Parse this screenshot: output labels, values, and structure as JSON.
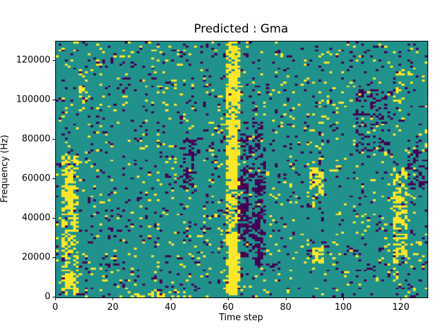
{
  "chart_data": {
    "type": "heatmap",
    "title": "Predicted : Gma",
    "xlabel": "Time step",
    "ylabel": "Frequency (Hz)",
    "x_ticks": [
      0,
      20,
      40,
      60,
      80,
      100,
      120
    ],
    "y_ticks": [
      0,
      20000,
      40000,
      60000,
      80000,
      100000,
      120000
    ],
    "xlim": [
      0,
      129
    ],
    "ylim": [
      0,
      130000
    ],
    "grid_cols": 129,
    "grid_rows": 128,
    "colormap": "viridis",
    "legend": "none",
    "grid_lines": "off",
    "colors": {
      "low": "#440154",
      "mid": "#21918c",
      "high": "#fde725"
    },
    "base_value": "mid",
    "noise": {
      "seed": 42,
      "high_p": 0.045,
      "low_p": 0.055
    },
    "features": [
      {
        "x": [
          59,
          63
        ],
        "y": [
          0,
          130000
        ],
        "value": "high",
        "density": 0.5
      },
      {
        "x": [
          60,
          62
        ],
        "y": [
          2000,
          32000
        ],
        "value": "high",
        "density": 0.95
      },
      {
        "x": [
          60,
          62
        ],
        "y": [
          60000,
          90000
        ],
        "value": "high",
        "density": 0.9
      },
      {
        "x": [
          60,
          62
        ],
        "y": [
          100000,
          127000
        ],
        "value": "high",
        "density": 0.8
      },
      {
        "x": [
          2,
          7
        ],
        "y": [
          2000,
          72000
        ],
        "value": "high",
        "density": 0.45
      },
      {
        "x": [
          3,
          5
        ],
        "y": [
          45000,
          65000
        ],
        "value": "high",
        "density": 0.85
      },
      {
        "x": [
          3,
          5
        ],
        "y": [
          5000,
          12000
        ],
        "value": "high",
        "density": 0.8
      },
      {
        "x": [
          117,
          121
        ],
        "y": [
          18000,
          65000
        ],
        "value": "high",
        "density": 0.5
      },
      {
        "x": [
          117,
          120
        ],
        "y": [
          100000,
          115000
        ],
        "value": "high",
        "density": 0.3
      },
      {
        "x": [
          64,
          72
        ],
        "y": [
          20000,
          90000
        ],
        "value": "low",
        "density": 0.3
      },
      {
        "x": [
          63,
          66
        ],
        "y": [
          30000,
          60000
        ],
        "value": "low",
        "density": 0.5
      },
      {
        "x": [
          69,
          71
        ],
        "y": [
          15000,
          60000
        ],
        "value": "low",
        "density": 0.5
      },
      {
        "x": [
          88,
          92
        ],
        "y": [
          52000,
          66000
        ],
        "value": "high",
        "density": 0.6
      },
      {
        "x": [
          89,
          92
        ],
        "y": [
          18000,
          26000
        ],
        "value": "high",
        "density": 0.5
      },
      {
        "x": [
          25,
          45
        ],
        "y": [
          0,
          3000
        ],
        "value": "high",
        "density": 0.35
      },
      {
        "x": [
          44,
          47
        ],
        "y": [
          55000,
          80000
        ],
        "value": "low",
        "density": 0.45
      },
      {
        "x": [
          104,
          115
        ],
        "y": [
          75000,
          105000
        ],
        "value": "low",
        "density": 0.25
      },
      {
        "x": [
          122,
          128
        ],
        "y": [
          55000,
          75000
        ],
        "value": "low",
        "density": 0.35
      },
      {
        "x": [
          8,
          10
        ],
        "y": [
          95000,
          115000
        ],
        "value": "high",
        "density": 0.3
      }
    ]
  }
}
